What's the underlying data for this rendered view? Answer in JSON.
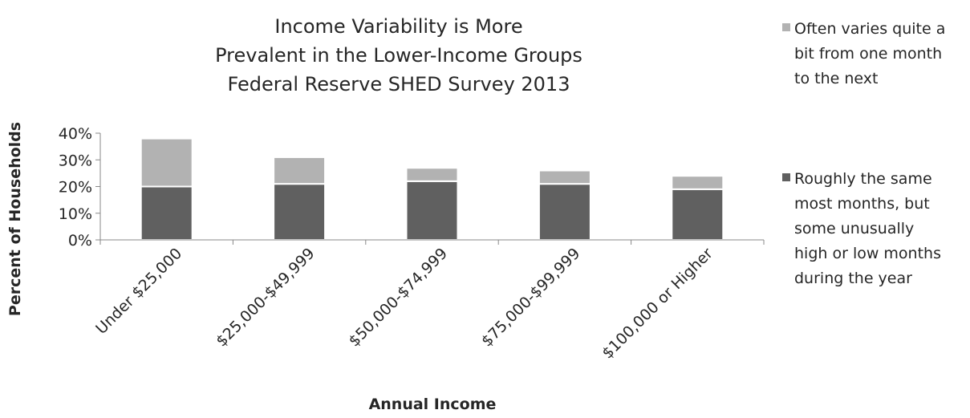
{
  "chart_data": {
    "type": "bar",
    "stacked": true,
    "title_lines": [
      "Income Variability is More",
      "Prevalent in the Lower-Income Groups",
      "Federal Reserve SHED Survey 2013"
    ],
    "xlabel": "Annual Income",
    "ylabel": "Percent of Households",
    "ylim": [
      0,
      40
    ],
    "yticks": [
      "0%",
      "10%",
      "20%",
      "30%",
      "40%"
    ],
    "categories": [
      "Under $25,000",
      "$25,000-$49,999",
      "$50,000-$74,999",
      "$75,000-$99,999",
      "$100,000 or Higher"
    ],
    "series": [
      {
        "name_lines": [
          "Roughly the same",
          "most months, but",
          "some unusually",
          "high or low months",
          "during the year"
        ],
        "color": "#606060",
        "values": [
          20,
          21,
          22,
          21,
          19
        ]
      },
      {
        "name_lines": [
          "Often varies quite a",
          "bit from one month",
          "to the next"
        ],
        "color": "#b2b2b2",
        "values": [
          18,
          10,
          5,
          5,
          5
        ]
      }
    ],
    "grid": false,
    "legend_position": "right"
  }
}
